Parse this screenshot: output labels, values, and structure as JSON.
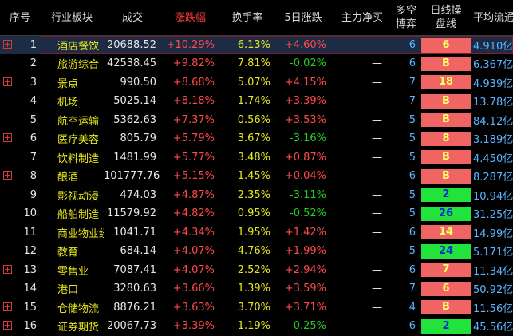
{
  "headers": [
    "序号",
    "行业板块",
    "成交",
    "涨跌幅",
    "换手率",
    "5日涨跌",
    "主力净买",
    "多空\n博弈",
    "日线操\n盘线",
    "平均流通"
  ],
  "rows": [
    {
      "idx": "1",
      "name": "酒店餐饮",
      "amount": "20688.52",
      "change": "+10.29%",
      "turnover": "6.13%",
      "d5": "+4.60%",
      "d5_dir": "up",
      "flow": "—",
      "ls": "6",
      "dx": "6",
      "dx_color": "r",
      "avg": "4.910亿",
      "plus": true,
      "selected": true
    },
    {
      "idx": "2",
      "name": "旅游综合",
      "amount": "42538.45",
      "change": "+9.82%",
      "turnover": "7.81%",
      "d5": "-0.02%",
      "d5_dir": "down",
      "flow": "—",
      "ls": "6",
      "dx": "B",
      "dx_color": "r",
      "avg": "6.367亿",
      "plus": false
    },
    {
      "idx": "3",
      "name": "景点",
      "amount": "990.50",
      "change": "+8.68%",
      "turnover": "5.07%",
      "d5": "+4.15%",
      "d5_dir": "up",
      "flow": "—",
      "ls": "7",
      "dx": "18",
      "dx_color": "r",
      "avg": "4.939亿",
      "plus": true
    },
    {
      "idx": "4",
      "name": "机场",
      "amount": "5025.14",
      "change": "+8.18%",
      "turnover": "1.74%",
      "d5": "+3.39%",
      "d5_dir": "up",
      "flow": "—",
      "ls": "7",
      "dx": "B",
      "dx_color": "r",
      "avg": "13.78亿",
      "plus": false
    },
    {
      "idx": "5",
      "name": "航空运输",
      "amount": "5362.63",
      "change": "+7.37%",
      "turnover": "0.56%",
      "d5": "+3.53%",
      "d5_dir": "up",
      "flow": "—",
      "ls": "5",
      "dx": "B",
      "dx_color": "r",
      "avg": "84.12亿",
      "plus": false
    },
    {
      "idx": "6",
      "name": "医疗美容",
      "amount": "805.79",
      "change": "+5.79%",
      "turnover": "3.67%",
      "d5": "-3.16%",
      "d5_dir": "down",
      "flow": "—",
      "ls": "5",
      "dx": "8",
      "dx_color": "r",
      "avg": "3.189亿",
      "plus": true
    },
    {
      "idx": "7",
      "name": "饮料制造",
      "amount": "1481.99",
      "change": "+5.77%",
      "turnover": "3.48%",
      "d5": "+0.87%",
      "d5_dir": "up",
      "flow": "—",
      "ls": "5",
      "dx": "B",
      "dx_color": "r",
      "avg": "4.450亿",
      "plus": false
    },
    {
      "idx": "8",
      "name": "酿酒",
      "amount": "101777.76",
      "change": "+5.15%",
      "turnover": "1.45%",
      "d5": "+0.04%",
      "d5_dir": "up",
      "flow": "—",
      "ls": "6",
      "dx": "B",
      "dx_color": "r",
      "avg": "8.287亿",
      "plus": true
    },
    {
      "idx": "9",
      "name": "影视动漫",
      "amount": "474.03",
      "change": "+4.87%",
      "turnover": "2.35%",
      "d5": "-3.11%",
      "d5_dir": "down",
      "flow": "—",
      "ls": "5",
      "dx": "2",
      "dx_color": "g",
      "avg": "10.94亿",
      "plus": false
    },
    {
      "idx": "10",
      "name": "船舶制造",
      "amount": "11579.92",
      "change": "+4.82%",
      "turnover": "0.95%",
      "d5": "-0.52%",
      "d5_dir": "down",
      "flow": "—",
      "ls": "5",
      "dx": "26",
      "dx_color": "g",
      "avg": "31.25亿",
      "plus": false
    },
    {
      "idx": "11",
      "name": "商业物业经",
      "amount": "1041.71",
      "change": "+4.34%",
      "turnover": "1.95%",
      "d5": "+1.42%",
      "d5_dir": "up",
      "flow": "—",
      "ls": "6",
      "dx": "14",
      "dx_color": "r",
      "avg": "14.99亿",
      "plus": false
    },
    {
      "idx": "12",
      "name": "教育",
      "amount": "684.14",
      "change": "+4.07%",
      "turnover": "4.76%",
      "d5": "+1.99%",
      "d5_dir": "up",
      "flow": "—",
      "ls": "5",
      "dx": "24",
      "dx_color": "g",
      "avg": "5.171亿",
      "plus": false
    },
    {
      "idx": "13",
      "name": "零售业",
      "amount": "7087.41",
      "change": "+4.07%",
      "turnover": "2.52%",
      "d5": "+2.94%",
      "d5_dir": "up",
      "flow": "—",
      "ls": "6",
      "dx": "7",
      "dx_color": "r",
      "avg": "11.34亿",
      "plus": true
    },
    {
      "idx": "14",
      "name": "港口",
      "amount": "3280.63",
      "change": "+3.66%",
      "turnover": "1.39%",
      "d5": "+3.59%",
      "d5_dir": "up",
      "flow": "—",
      "ls": "7",
      "dx": "6",
      "dx_color": "r",
      "avg": "50.92亿",
      "plus": false
    },
    {
      "idx": "15",
      "name": "仓储物流",
      "amount": "8876.21",
      "change": "+3.63%",
      "turnover": "3.70%",
      "d5": "+3.71%",
      "d5_dir": "up",
      "flow": "—",
      "ls": "4",
      "dx": "B",
      "dx_color": "r",
      "avg": "11.56亿",
      "plus": true
    },
    {
      "idx": "16",
      "name": "证券期货",
      "amount": "20067.73",
      "change": "+3.39%",
      "turnover": "1.19%",
      "d5": "-0.25%",
      "d5_dir": "down",
      "flow": "—",
      "ls": "6",
      "dx": "2",
      "dx_color": "g",
      "avg": "45.56亿",
      "plus": true
    }
  ]
}
